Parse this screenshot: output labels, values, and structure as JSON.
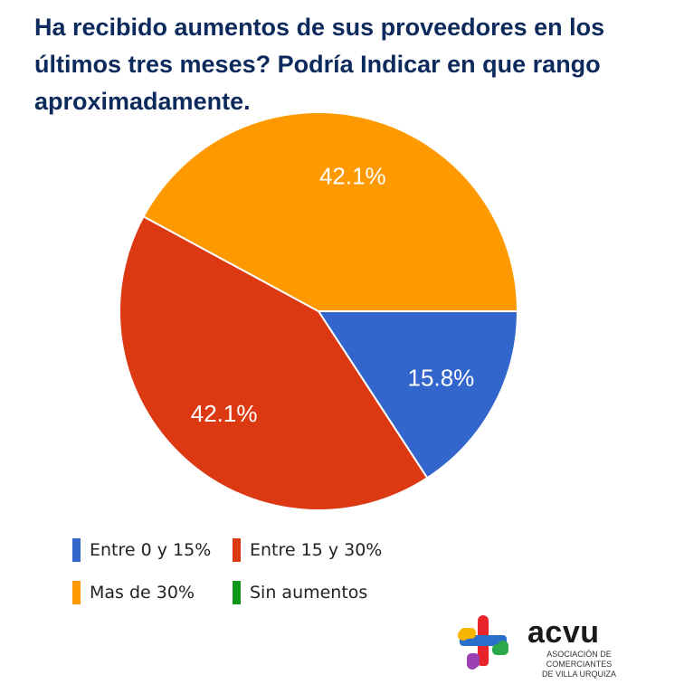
{
  "chart_data": {
    "type": "pie",
    "title": "Ha recibido aumentos de sus proveedores en los últimos tres meses? Podría Indicar en que rango aproximadamente.",
    "slices": [
      {
        "name": "Entre 0 y 15%",
        "value": 15.8,
        "label": "15.8%",
        "color": "#3366cc"
      },
      {
        "name": "Entre 15 y 30%",
        "value": 42.1,
        "label": "42.1%",
        "color": "#dc3912"
      },
      {
        "name": "Mas de 30%",
        "value": 42.1,
        "label": "42.1%",
        "color": "#ff9900"
      },
      {
        "name": "Sin aumentos",
        "value": 0,
        "label": "",
        "color": "#109618"
      }
    ],
    "legend_position": "bottom"
  },
  "logo": {
    "name": "acvu",
    "line1": "ASOCIACIÓN DE COMERCIANTES",
    "line2": "DE VILLA URQUIZA"
  }
}
